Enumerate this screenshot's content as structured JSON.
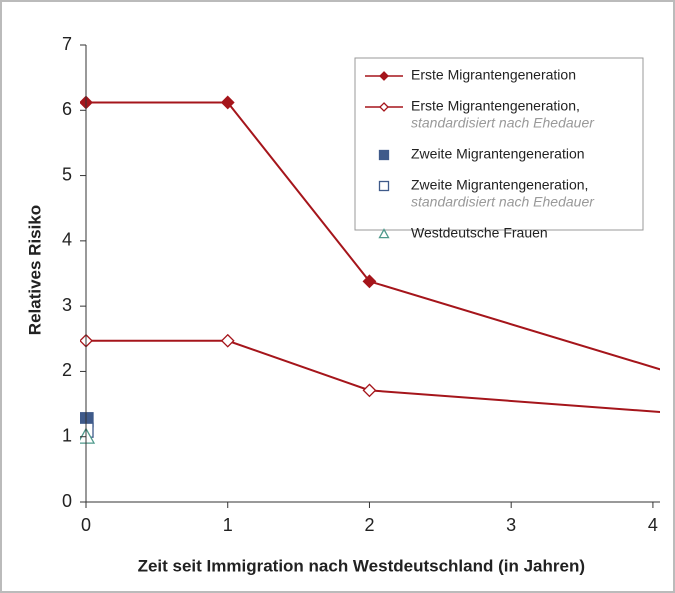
{
  "chart_data": {
    "type": "line",
    "xlabel": "Zeit seit Immigration nach Westdeutschland (in Jahren)",
    "ylabel": "Relatives Risiko",
    "xlim": [
      0,
      4.05
    ],
    "ylim": [
      0,
      7
    ],
    "xticks": [
      0,
      1,
      2,
      3,
      4
    ],
    "yticks": [
      0,
      1,
      2,
      3,
      4,
      5,
      6,
      7
    ],
    "grid": false,
    "legend": "upper right",
    "series": [
      {
        "name": "Erste Migrantengeneration",
        "color": "#a5151b",
        "marker": "diamond-filled",
        "line": true,
        "x": [
          0,
          1,
          2,
          4.1
        ],
        "values": [
          6.12,
          6.12,
          3.38,
          2.0
        ]
      },
      {
        "name": "Erste Migrantengeneration,",
        "note": "standardisiert nach Ehedauer",
        "color": "#a5151b",
        "marker": "diamond-open",
        "line": true,
        "x": [
          0,
          1,
          2,
          4.1
        ],
        "values": [
          2.47,
          2.47,
          1.71,
          1.37
        ]
      },
      {
        "name": "Zweite Migrantengeneration",
        "color": "#3f5a8a",
        "marker": "square-filled",
        "line": false,
        "x": [
          0
        ],
        "values": [
          1.26
        ]
      },
      {
        "name": "Zweite Migrantengeneration,",
        "note": "standardisiert nach Ehedauer",
        "color": "#3f5a8a",
        "marker": "square-open",
        "line": false,
        "x": [
          0
        ],
        "values": [
          1.1
        ]
      },
      {
        "name": "Westdeutsche Frauen",
        "color": "#4f9a8c",
        "marker": "triangle-open",
        "line": false,
        "x": [
          0
        ],
        "values": [
          1.0
        ]
      }
    ]
  }
}
